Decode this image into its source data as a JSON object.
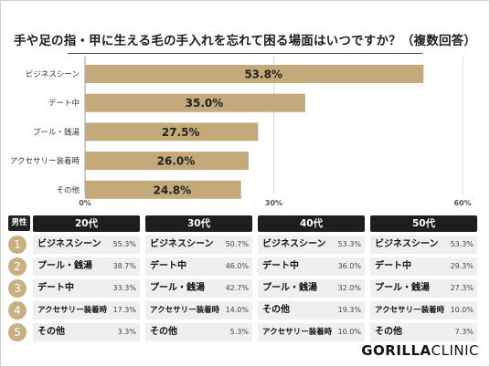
{
  "title": "手や足の指・甲に生える毛の手入れを忘れて困る場面はいつですか？（複数回答）",
  "chart_data": {
    "type": "bar",
    "orientation": "horizontal",
    "categories": [
      "ビジネスシーン",
      "デート中",
      "プール・銭湯",
      "アクセサリー装着時",
      "その他"
    ],
    "values": [
      53.8,
      35.0,
      27.5,
      26.0,
      24.8
    ],
    "value_labels": [
      "53.8%",
      "35.0%",
      "27.5%",
      "26.0%",
      "24.8%"
    ],
    "xlim": [
      0,
      60
    ],
    "ticks": [
      "0%",
      "30%",
      "60%"
    ],
    "grid": true,
    "bar_color": "#c4aa7b"
  },
  "breakdown": {
    "gender_label": "男性",
    "ranks": [
      "1",
      "2",
      "3",
      "4",
      "5"
    ],
    "groups": [
      {
        "name": "20代",
        "items": [
          {
            "label": "ビジネスシーン",
            "value": "55.3%"
          },
          {
            "label": "プール・銭湯",
            "value": "38.7%"
          },
          {
            "label": "デート中",
            "value": "33.3%"
          },
          {
            "label": "アクセサリー装着時",
            "value": "17.3%"
          },
          {
            "label": "その他",
            "value": "3.3%"
          }
        ]
      },
      {
        "name": "30代",
        "items": [
          {
            "label": "ビジネスシーン",
            "value": "50.7%"
          },
          {
            "label": "デート中",
            "value": "46.0%"
          },
          {
            "label": "プール・銭湯",
            "value": "42.7%"
          },
          {
            "label": "アクセサリー装着時",
            "value": "14.0%"
          },
          {
            "label": "その他",
            "value": "5.3%"
          }
        ]
      },
      {
        "name": "40代",
        "items": [
          {
            "label": "ビジネスシーン",
            "value": "53.3%"
          },
          {
            "label": "デート中",
            "value": "36.0%"
          },
          {
            "label": "プール・銭湯",
            "value": "32.0%"
          },
          {
            "label": "その他",
            "value": "19.3%"
          },
          {
            "label": "アクセサリー装着時",
            "value": "10.0%"
          }
        ]
      },
      {
        "name": "50代",
        "items": [
          {
            "label": "ビジネスシーン",
            "value": "53.3%"
          },
          {
            "label": "デート中",
            "value": "29.3%"
          },
          {
            "label": "プール・銭湯",
            "value": "27.3%"
          },
          {
            "label": "アクセサリー装着時",
            "value": "10.0%"
          },
          {
            "label": "その他",
            "value": "7.3%"
          }
        ]
      }
    ]
  },
  "logo": {
    "bold": "GORILLA",
    "light": "CLINIC"
  },
  "colors": {
    "accent": "#c4aa7b",
    "rank_circle": "#c9b082",
    "header_bg": "#1e1e1e",
    "row_bg": "#efefef"
  }
}
